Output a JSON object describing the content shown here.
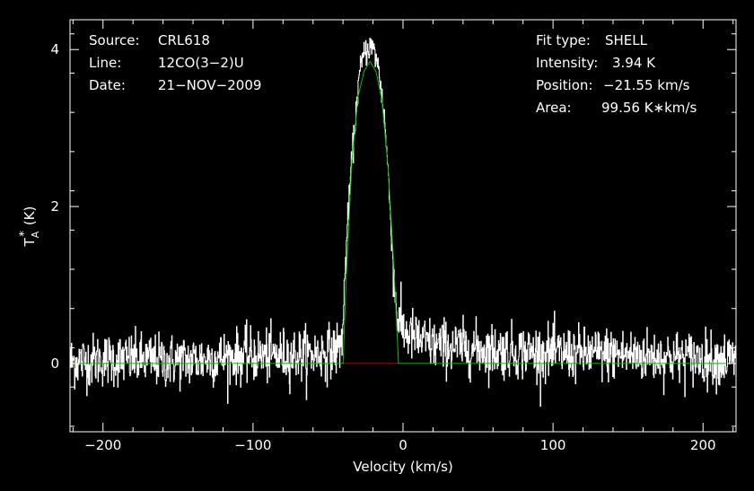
{
  "chart_data": {
    "type": "line",
    "xlabel": "Velocity (km/s)",
    "ylabel": "T",
    "ylabel_sub": "A",
    "ylabel_sup": "*",
    "ylabel_unit": "(K)",
    "xlim": [
      -222,
      222
    ],
    "ylim": [
      -0.87,
      4.38
    ],
    "x_ticks": [
      -200,
      -100,
      0,
      100,
      200
    ],
    "y_ticks": [
      0,
      2,
      4
    ],
    "x_tick_labels": [
      "−200",
      "−100",
      "0",
      "100",
      "200"
    ],
    "y_tick_labels": [
      "0",
      "2",
      "4"
    ],
    "colors": {
      "background": "#000000",
      "axes": "#ffffff",
      "spectrum": "#ffffff",
      "fit": "#00c000",
      "window": "#c00000"
    },
    "info_left": [
      {
        "key": "Source:",
        "value": "CRL618"
      },
      {
        "key": "Line:",
        "value": "12CO(3−2)U"
      },
      {
        "key": "Date:",
        "value": "21−NOV−2009"
      }
    ],
    "info_right": [
      {
        "key": "Fit type:",
        "value": "SHELL"
      },
      {
        "key": "Intensity:",
        "value": "3.94 K"
      },
      {
        "key": "Position:",
        "value": "−21.55 km/s"
      },
      {
        "key": "Area:",
        "value": "99.56 K∗km/s"
      }
    ],
    "series": [
      {
        "kind": "spectrum",
        "x": [
          -222,
          -200,
          -180,
          -160,
          -140,
          -120,
          -100,
          -80,
          -60,
          -50,
          -42,
          -40,
          -38,
          -35,
          -32,
          -30,
          -28,
          -26,
          -24,
          -22,
          -20,
          -18,
          -16,
          -14,
          -12,
          -10,
          -8,
          -6,
          -4,
          -2,
          0,
          10,
          20,
          40,
          60,
          80,
          100,
          120,
          140,
          160,
          180,
          200,
          222
        ],
        "y": [
          0.02,
          0.05,
          0.05,
          0.03,
          0.04,
          0.08,
          0.1,
          0.1,
          0.12,
          0.15,
          0.2,
          0.5,
          1.5,
          2.4,
          3.1,
          3.55,
          3.8,
          3.95,
          4.0,
          4.05,
          4.0,
          3.9,
          3.7,
          3.4,
          3.0,
          2.4,
          1.7,
          1.0,
          0.6,
          0.5,
          0.42,
          0.3,
          0.24,
          0.2,
          0.17,
          0.15,
          0.13,
          0.12,
          0.12,
          0.1,
          0.08,
          0.06,
          0.05
        ],
        "noise_rms": 0.17
      },
      {
        "kind": "fit",
        "x": [
          -222,
          -40,
          -38,
          -34,
          -30,
          -26,
          -22,
          -18,
          -14,
          -10,
          -6,
          -3,
          222
        ],
        "y": [
          0,
          0,
          1.05,
          2.6,
          3.4,
          3.72,
          3.85,
          3.72,
          3.35,
          2.5,
          1.2,
          0,
          0
        ]
      },
      {
        "kind": "window",
        "x": [
          -40,
          -3
        ],
        "y": [
          0,
          0
        ]
      }
    ]
  }
}
